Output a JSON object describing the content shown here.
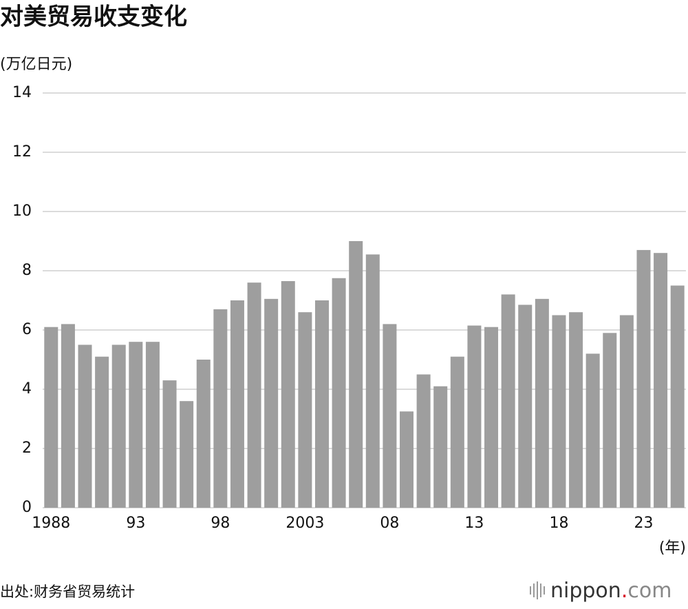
{
  "chart_data": {
    "type": "bar",
    "title": "对美贸易收支变化",
    "y_label": "(万亿日元)",
    "x_label": "(年)",
    "source": "出处:财务省贸易统计",
    "logo": {
      "name": "nippon",
      "dot": ".",
      "domain": "com"
    },
    "categories": [
      "1988",
      null,
      null,
      null,
      null,
      "93",
      null,
      null,
      null,
      null,
      "98",
      null,
      null,
      null,
      null,
      "2003",
      null,
      null,
      null,
      null,
      "08",
      null,
      null,
      null,
      null,
      "13",
      null,
      null,
      null,
      null,
      "18",
      null,
      null,
      null,
      null,
      "23",
      null,
      null
    ],
    "values": [
      6.1,
      6.2,
      5.5,
      5.1,
      5.5,
      5.6,
      5.6,
      4.3,
      3.6,
      5.0,
      6.7,
      7.0,
      7.6,
      7.05,
      7.65,
      6.6,
      7.0,
      7.75,
      9.0,
      8.55,
      6.2,
      3.25,
      4.5,
      4.1,
      5.1,
      6.15,
      6.1,
      7.2,
      6.85,
      7.05,
      6.5,
      6.6,
      5.2,
      5.9,
      6.5,
      8.7,
      8.6,
      7.5
    ],
    "color": "#9e9e9e",
    "ylim": [
      0,
      14
    ],
    "yticks": [
      0,
      2,
      4,
      6,
      8,
      10,
      12,
      14
    ],
    "grid": true
  }
}
